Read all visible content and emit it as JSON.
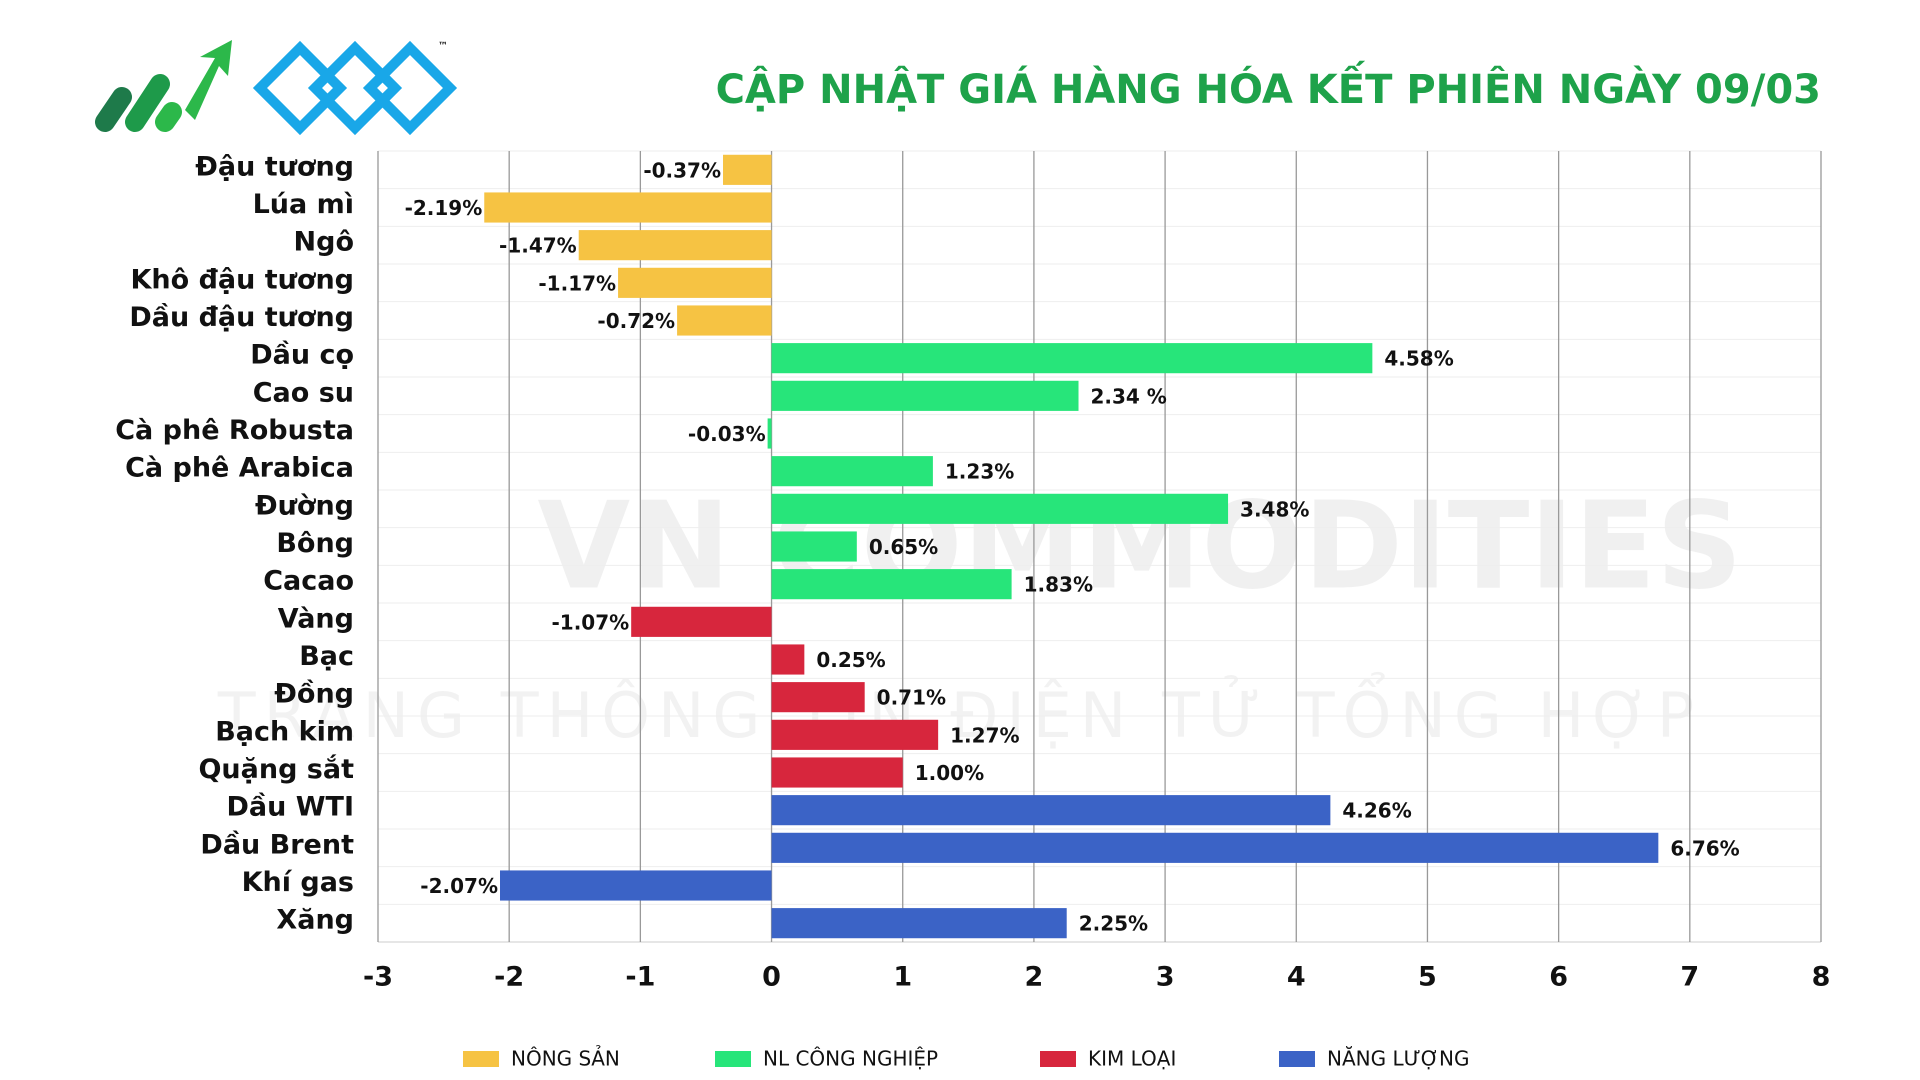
{
  "chart_data": {
    "type": "bar",
    "orientation": "horizontal",
    "title": "CẬP NHẬT GIÁ HÀNG HÓA KẾT PHIÊN NGÀY 09/03",
    "watermark": [
      "VN COMMODITIES",
      "TRANG THÔNG TIN ĐIỆN TỬ TỔNG HỢP"
    ],
    "logo_mark": "™",
    "categories": [
      "Đậu tương",
      "Lúa mì",
      "Ngô",
      "Khô đậu tương",
      "Dầu đậu tương",
      "Dầu cọ",
      "Cao su",
      "Cà phê Robusta",
      "Cà phê Arabica",
      "Đường",
      "Bông",
      "Cacao",
      "Vàng",
      "Bạc",
      "Đồng",
      "Bạch kim",
      "Quặng sắt",
      "Dầu WTI",
      "Dầu Brent",
      "Khí gas",
      "Xăng"
    ],
    "series": [
      {
        "name": "NÔNG SẢN",
        "color": "#f6c343",
        "values": [
          -0.37,
          -2.19,
          -1.47,
          -1.17,
          -0.72,
          null,
          null,
          null,
          null,
          null,
          null,
          null,
          null,
          null,
          null,
          null,
          null,
          null,
          null,
          null,
          null
        ],
        "value_labels": [
          "-0.37%",
          "-2.19%",
          "-1.47%",
          "-1.17%",
          "-0.72%",
          null,
          null,
          null,
          null,
          null,
          null,
          null,
          null,
          null,
          null,
          null,
          null,
          null,
          null,
          null,
          null
        ]
      },
      {
        "name": "NL CÔNG NGHIỆP",
        "color": "#27e57a",
        "values": [
          null,
          null,
          null,
          null,
          null,
          4.58,
          2.34,
          -0.03,
          1.23,
          3.48,
          0.65,
          1.83,
          null,
          null,
          null,
          null,
          null,
          null,
          null,
          null,
          null
        ],
        "value_labels": [
          null,
          null,
          null,
          null,
          null,
          "4.58%",
          "2.34 %",
          "-0.03%",
          "1.23%",
          "3.48%",
          "0.65%",
          "1.83%",
          null,
          null,
          null,
          null,
          null,
          null,
          null,
          null,
          null
        ]
      },
      {
        "name": "KIM LOẠI",
        "color": "#d7263d",
        "values": [
          null,
          null,
          null,
          null,
          null,
          null,
          null,
          null,
          null,
          null,
          null,
          null,
          -1.07,
          0.25,
          0.71,
          1.27,
          1.0,
          null,
          null,
          null,
          null
        ],
        "value_labels": [
          null,
          null,
          null,
          null,
          null,
          null,
          null,
          null,
          null,
          null,
          null,
          null,
          "-1.07%",
          "0.25%",
          "0.71%",
          "1.27%",
          "1.00%",
          null,
          null,
          null,
          null
        ]
      },
      {
        "name": "NĂNG LƯỢNG",
        "color": "#3b63c6",
        "values": [
          null,
          null,
          null,
          null,
          null,
          null,
          null,
          null,
          null,
          null,
          null,
          null,
          null,
          null,
          null,
          null,
          null,
          4.26,
          6.76,
          -2.07,
          2.25
        ],
        "value_labels": [
          null,
          null,
          null,
          null,
          null,
          null,
          null,
          null,
          null,
          null,
          null,
          null,
          null,
          null,
          null,
          null,
          null,
          "4.26%",
          "6.76%",
          "-2.07%",
          "2.25%"
        ]
      }
    ],
    "xlim": [
      -3,
      8
    ],
    "xticks": [
      -3,
      -2,
      -1,
      0,
      1,
      2,
      3,
      4,
      5,
      6,
      7,
      8
    ],
    "grid": true
  }
}
